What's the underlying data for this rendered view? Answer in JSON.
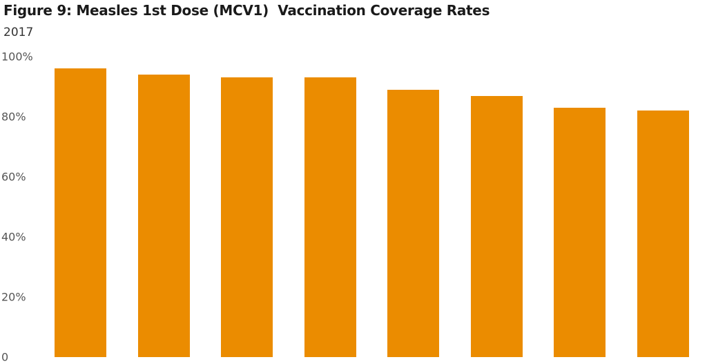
{
  "header": {
    "title": "Figure 9: Measles 1st Dose (MCV1)  Vaccination Coverage Rates",
    "subtitle": "2017"
  },
  "axis": {
    "y_ticks": [
      "100%",
      "80%",
      "60%",
      "40%",
      "20%",
      "0"
    ]
  },
  "colors": {
    "bar": "#EB8C00"
  },
  "chart_data": {
    "type": "bar",
    "title": "Figure 9: Measles 1st Dose (MCV1)  Vaccination Coverage Rates",
    "subtitle": "2017",
    "xlabel": "",
    "ylabel": "",
    "categories": [
      "",
      "",
      "",
      "",
      "",
      "",
      "",
      ""
    ],
    "values": [
      96,
      94,
      93,
      93,
      89,
      87,
      83,
      82
    ],
    "y_tick_labels": [
      "0",
      "20%",
      "40%",
      "60%",
      "80%",
      "100%"
    ],
    "ylim": [
      0,
      100
    ],
    "grid": false,
    "legend": null,
    "bar_color": "#EB8C00"
  }
}
